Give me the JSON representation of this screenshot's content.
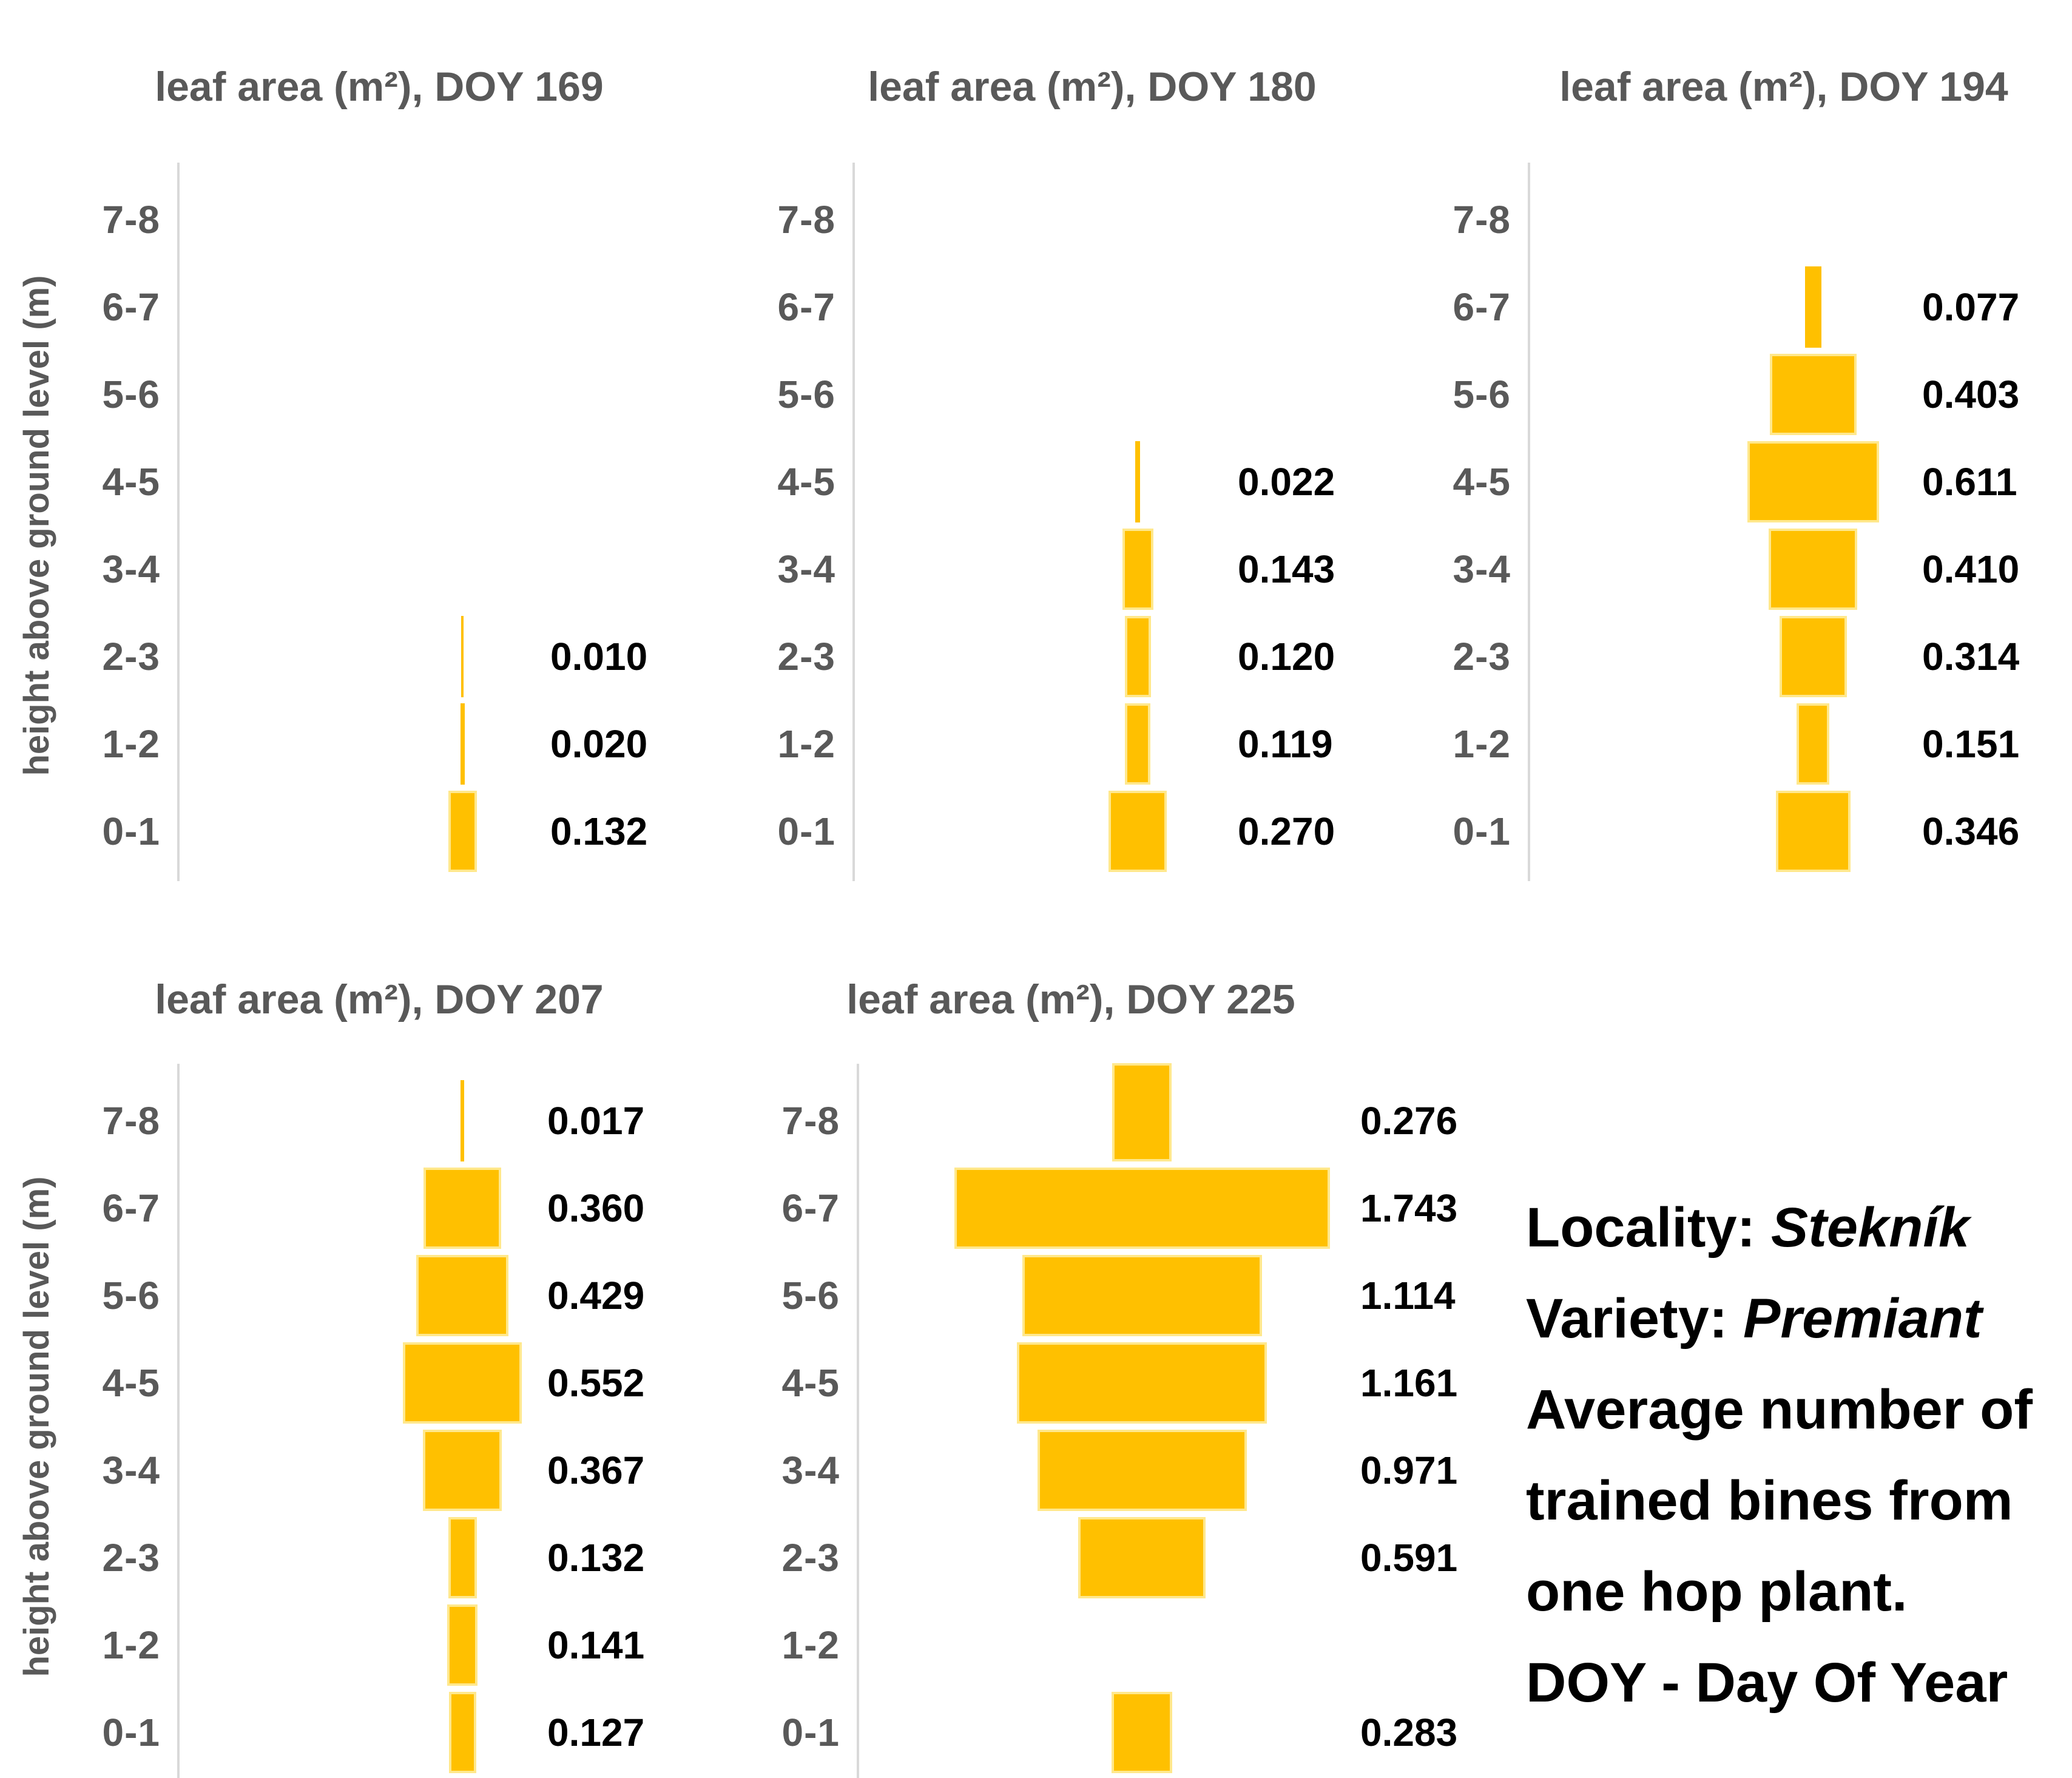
{
  "figure": {
    "y_axis_title": "height above ground level (m)",
    "colors": {
      "bar_fill": "#FFC000",
      "bar_edge": "#FFE88C",
      "axis_line": "#D9D9D9",
      "gray_text": "#595959",
      "value_text": "#000000",
      "background": "#FFFFFF"
    }
  },
  "chart_data": [
    {
      "type": "bar",
      "orientation": "horizontal-centered",
      "title": "leaf area (m²), DOY 169",
      "doy": 169,
      "xlabel": "",
      "ylabel": "height above ground level (m)",
      "grid": false,
      "legend": "none",
      "categories": [
        "7-8",
        "6-7",
        "5-6",
        "4-5",
        "3-4",
        "2-3",
        "1-2",
        "0-1"
      ],
      "values": [
        null,
        null,
        null,
        null,
        null,
        0.01,
        0.02,
        0.132
      ],
      "labels": [
        "",
        "",
        "",
        "",
        "",
        "0.010",
        "0.020",
        "0.132"
      ]
    },
    {
      "type": "bar",
      "orientation": "horizontal-centered",
      "title": "leaf area (m²), DOY 180",
      "doy": 180,
      "xlabel": "",
      "ylabel": "height above ground level (m)",
      "grid": false,
      "legend": "none",
      "categories": [
        "7-8",
        "6-7",
        "5-6",
        "4-5",
        "3-4",
        "2-3",
        "1-2",
        "0-1"
      ],
      "values": [
        null,
        null,
        null,
        0.022,
        0.143,
        0.12,
        0.119,
        0.27
      ],
      "labels": [
        "",
        "",
        "",
        "0.022",
        "0.143",
        "0.120",
        "0.119",
        "0.270"
      ]
    },
    {
      "type": "bar",
      "orientation": "horizontal-centered",
      "title": "leaf area (m²), DOY 194",
      "doy": 194,
      "xlabel": "",
      "ylabel": "height above ground level (m)",
      "grid": false,
      "legend": "none",
      "categories": [
        "7-8",
        "6-7",
        "5-6",
        "4-5",
        "3-4",
        "2-3",
        "1-2",
        "0-1"
      ],
      "values": [
        null,
        0.077,
        0.403,
        0.611,
        0.41,
        0.314,
        0.151,
        0.346
      ],
      "labels": [
        "",
        "0.077",
        "0.403",
        "0.611",
        "0.410",
        "0.314",
        "0.151",
        "0.346"
      ]
    },
    {
      "type": "bar",
      "orientation": "horizontal-centered",
      "title": "leaf area (m²), DOY 207",
      "doy": 207,
      "xlabel": "",
      "ylabel": "height above ground level (m)",
      "grid": false,
      "legend": "none",
      "categories": [
        "7-8",
        "6-7",
        "5-6",
        "4-5",
        "3-4",
        "2-3",
        "1-2",
        "0-1"
      ],
      "values": [
        0.017,
        0.36,
        0.429,
        0.552,
        0.367,
        0.132,
        0.141,
        0.127
      ],
      "labels": [
        "0.017",
        "0.360",
        "0.429",
        "0.552",
        "0.367",
        "0.132",
        "0.141",
        "0.127"
      ]
    },
    {
      "type": "bar",
      "orientation": "horizontal-centered",
      "title": "leaf area (m²), DOY 225",
      "doy": 225,
      "xlabel": "",
      "ylabel": "height above ground level (m)",
      "grid": false,
      "legend": "none",
      "categories": [
        "7-8",
        "6-7",
        "5-6",
        "4-5",
        "3-4",
        "2-3",
        "1-2",
        "0-1"
      ],
      "values": [
        0.276,
        1.743,
        1.114,
        1.161,
        0.971,
        0.591,
        null,
        0.283
      ],
      "labels": [
        "0.276",
        "1.743",
        "1.114",
        "1.161",
        "0.971",
        "0.591",
        "",
        "0.283"
      ]
    }
  ],
  "notes": {
    "lines": [
      {
        "label": "Locality: ",
        "value": "Stekník"
      },
      {
        "label": "Variety: ",
        "value": "Premiant"
      },
      {
        "label": "Average number of",
        "value": ""
      },
      {
        "label": "trained bines from",
        "value": ""
      },
      {
        "label": "one hop plant.",
        "value": ""
      },
      {
        "label": "DOY - Day Of Year",
        "value": ""
      }
    ]
  }
}
